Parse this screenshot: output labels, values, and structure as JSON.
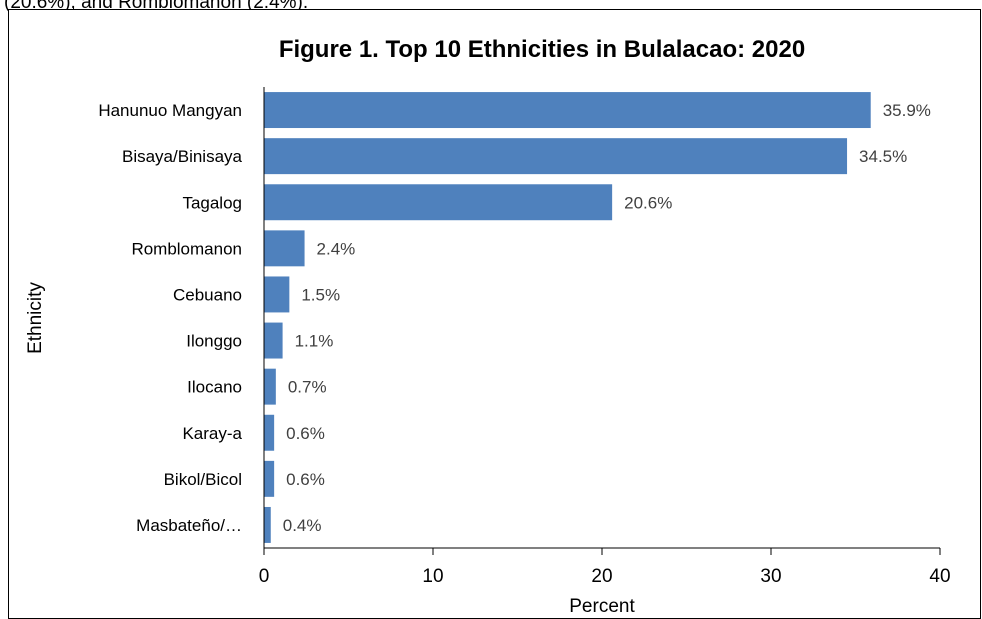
{
  "context_text": "(20.6%), and Romblomanon (2.4%).",
  "chart_data": {
    "type": "bar",
    "orientation": "horizontal",
    "title": "Figure 1. Top 10 Ethnicities in Bulalacao: 2020",
    "xlabel": "Percent",
    "ylabel": "Ethnicity",
    "categories": [
      "Hanunuo Mangyan",
      "Bisaya/Binisaya",
      "Tagalog",
      "Romblomanon",
      "Cebuano",
      "Ilonggo",
      "Ilocano",
      "Karay-a",
      "Bikol/Bicol",
      "Masbateño/…"
    ],
    "values": [
      35.9,
      34.5,
      20.6,
      2.4,
      1.5,
      1.1,
      0.7,
      0.6,
      0.6,
      0.4
    ],
    "value_labels": [
      "35.9%",
      "34.5%",
      "20.6%",
      "2.4%",
      "1.5%",
      "1.1%",
      "0.7%",
      "0.6%",
      "0.6%",
      "0.4%"
    ],
    "xlim": [
      0,
      40
    ],
    "xticks": [
      0,
      10,
      20,
      30,
      40
    ],
    "bar_color": "#4F81BD",
    "grid": false,
    "legend": "none"
  }
}
